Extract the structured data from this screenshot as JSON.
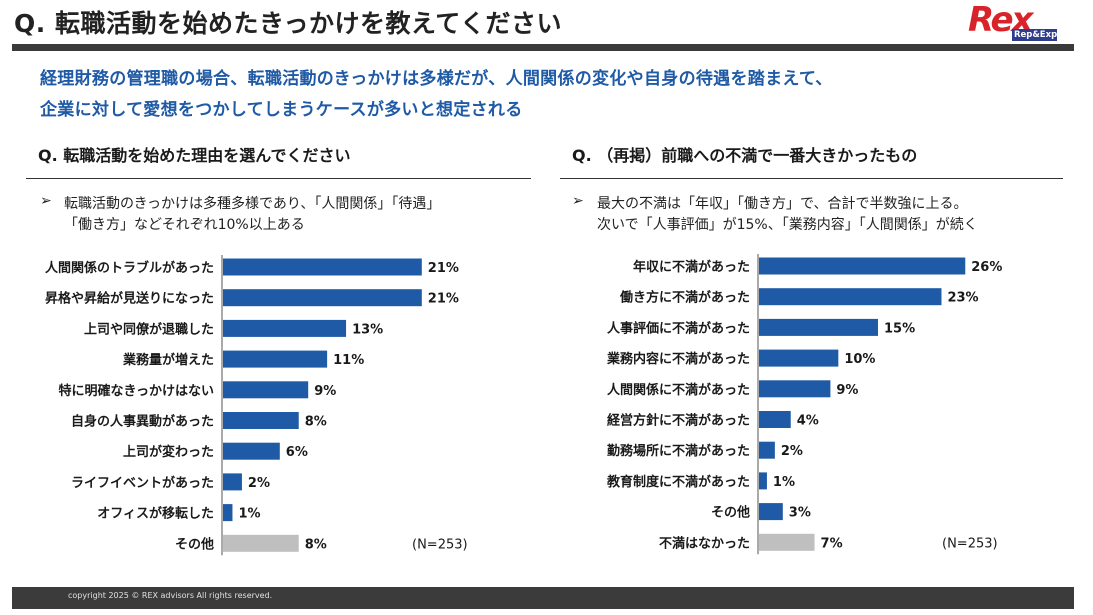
{
  "header": {
    "title": "Q. 転職活動を始めたきっかけを教えてください",
    "logo": {
      "main": "Rex",
      "sub": "Rep&Expert"
    }
  },
  "headline": [
    "経理財務の管理職の場合、転職活動のきっかけは多様だが、人間関係の変化や自身の待遇を踏まえて、",
    "企業に対して愛想をつかしてしまうケースが多いと想定される"
  ],
  "left_panel": {
    "question": "Q. 転職活動を始めた理由を選んでください",
    "bullet_mark": "➢",
    "bullet_lines": [
      "転職活動のきっかけは多種多様であり、「人間関係」「待遇」",
      "「働き方」などそれぞれ10%以上ある"
    ]
  },
  "right_panel": {
    "question": "Q. （再掲）前職への不満で一番大きかったもの",
    "bullet_mark": "➢",
    "bullet_lines": [
      "最大の不満は「年収」「働き方」で、合計で半数強に上る。",
      "次いで「人事評価」が15%、「業務内容」「人間関係」が続く"
    ]
  },
  "colors": {
    "bar": "#1f5aa6",
    "other_bar": "#bfbfbf",
    "headline": "#1f5aa6",
    "rule": "#3a3a3a"
  },
  "chart_data": [
    {
      "type": "bar",
      "orientation": "horizontal",
      "title": "Q. 転職活動を始めた理由を選んでください",
      "categories": [
        "人間関係のトラブルがあった",
        "昇格や昇給が見送りになった",
        "上司や同僚が退職した",
        "業務量が増えた",
        "特に明確なきっかけはない",
        "自身の人事異動があった",
        "上司が変わった",
        "ライフイベントがあった",
        "オフィスが移転した",
        "その他"
      ],
      "values": [
        21,
        21,
        13,
        11,
        9,
        8,
        6,
        2,
        1,
        8
      ],
      "value_labels": [
        "21%",
        "21%",
        "13%",
        "11%",
        "9%",
        "8%",
        "6%",
        "2%",
        "1%",
        "8%"
      ],
      "highlight": [
        false,
        false,
        false,
        false,
        false,
        false,
        false,
        false,
        false,
        true
      ],
      "unit": "%",
      "note": "(N=253)",
      "xlim": [
        0,
        30
      ]
    },
    {
      "type": "bar",
      "orientation": "horizontal",
      "title": "Q. （再掲）前職への不満で一番大きかったもの",
      "categories": [
        "年収に不満があった",
        "働き方に不満があった",
        "人事評価に不満があった",
        "業務内容に不満があった",
        "人間関係に不満があった",
        "経営方針に不満があった",
        "勤務場所に不満があった",
        "教育制度に不満があった",
        "その他",
        "不満はなかった"
      ],
      "values": [
        26,
        23,
        15,
        10,
        9,
        4,
        2,
        1,
        3,
        7
      ],
      "value_labels": [
        "26%",
        "23%",
        "15%",
        "10%",
        "9%",
        "4%",
        "2%",
        "1%",
        "3%",
        "7%"
      ],
      "highlight": [
        false,
        false,
        false,
        false,
        false,
        false,
        false,
        false,
        false,
        true
      ],
      "unit": "%",
      "note": "(N=253)",
      "xlim": [
        0,
        30
      ]
    }
  ],
  "footer": {
    "copyright": "copyright 2025 © REX advisors All rights reserved."
  }
}
